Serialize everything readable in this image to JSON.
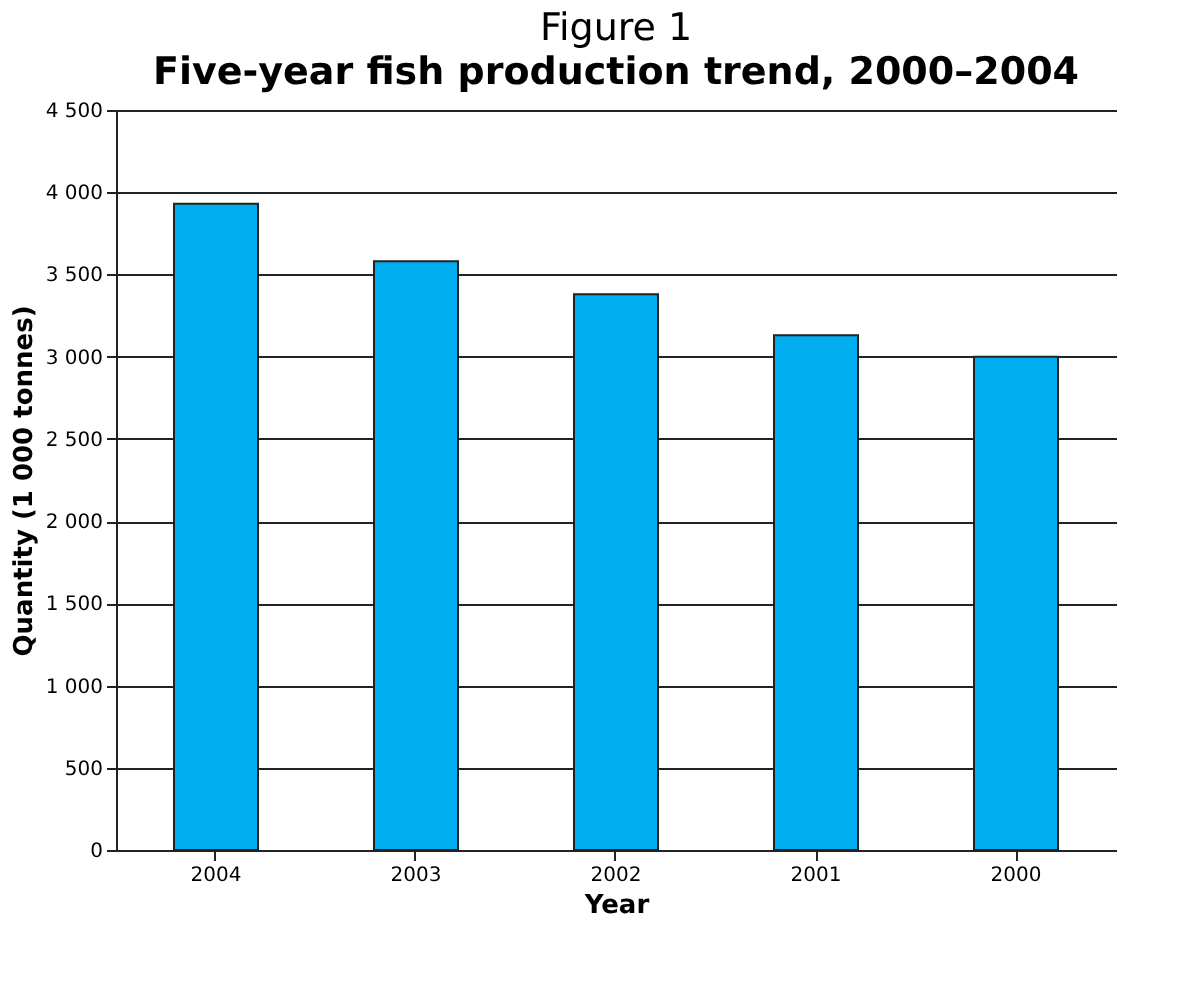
{
  "chart_data": {
    "type": "bar",
    "title": "Figure 1",
    "subtitle": "Five-year fish production trend, 2000–2004",
    "xlabel": "Year",
    "ylabel": "Quantity (1 000 tonnes)",
    "categories": [
      "2004",
      "2003",
      "2002",
      "2001",
      "2000"
    ],
    "series": [
      {
        "color": "#00adee",
        "values": [
          3930,
          3580,
          3380,
          3130,
          3000
        ]
      }
    ],
    "ylim": [
      0,
      4500
    ],
    "yticks": [
      0,
      500,
      {
        "value": 1000,
        "label": "1 000"
      },
      {
        "value": 1500,
        "label": "1 500"
      },
      {
        "value": 2000,
        "label": "2 000"
      },
      {
        "value": 2500,
        "label": "2 500"
      },
      {
        "value": 3000,
        "label": "3 000"
      },
      {
        "value": 3500,
        "label": "3 500"
      },
      {
        "value": 4000,
        "label": "4 000"
      },
      {
        "value": 4500,
        "label": "4 500"
      }
    ],
    "grid": "y"
  }
}
